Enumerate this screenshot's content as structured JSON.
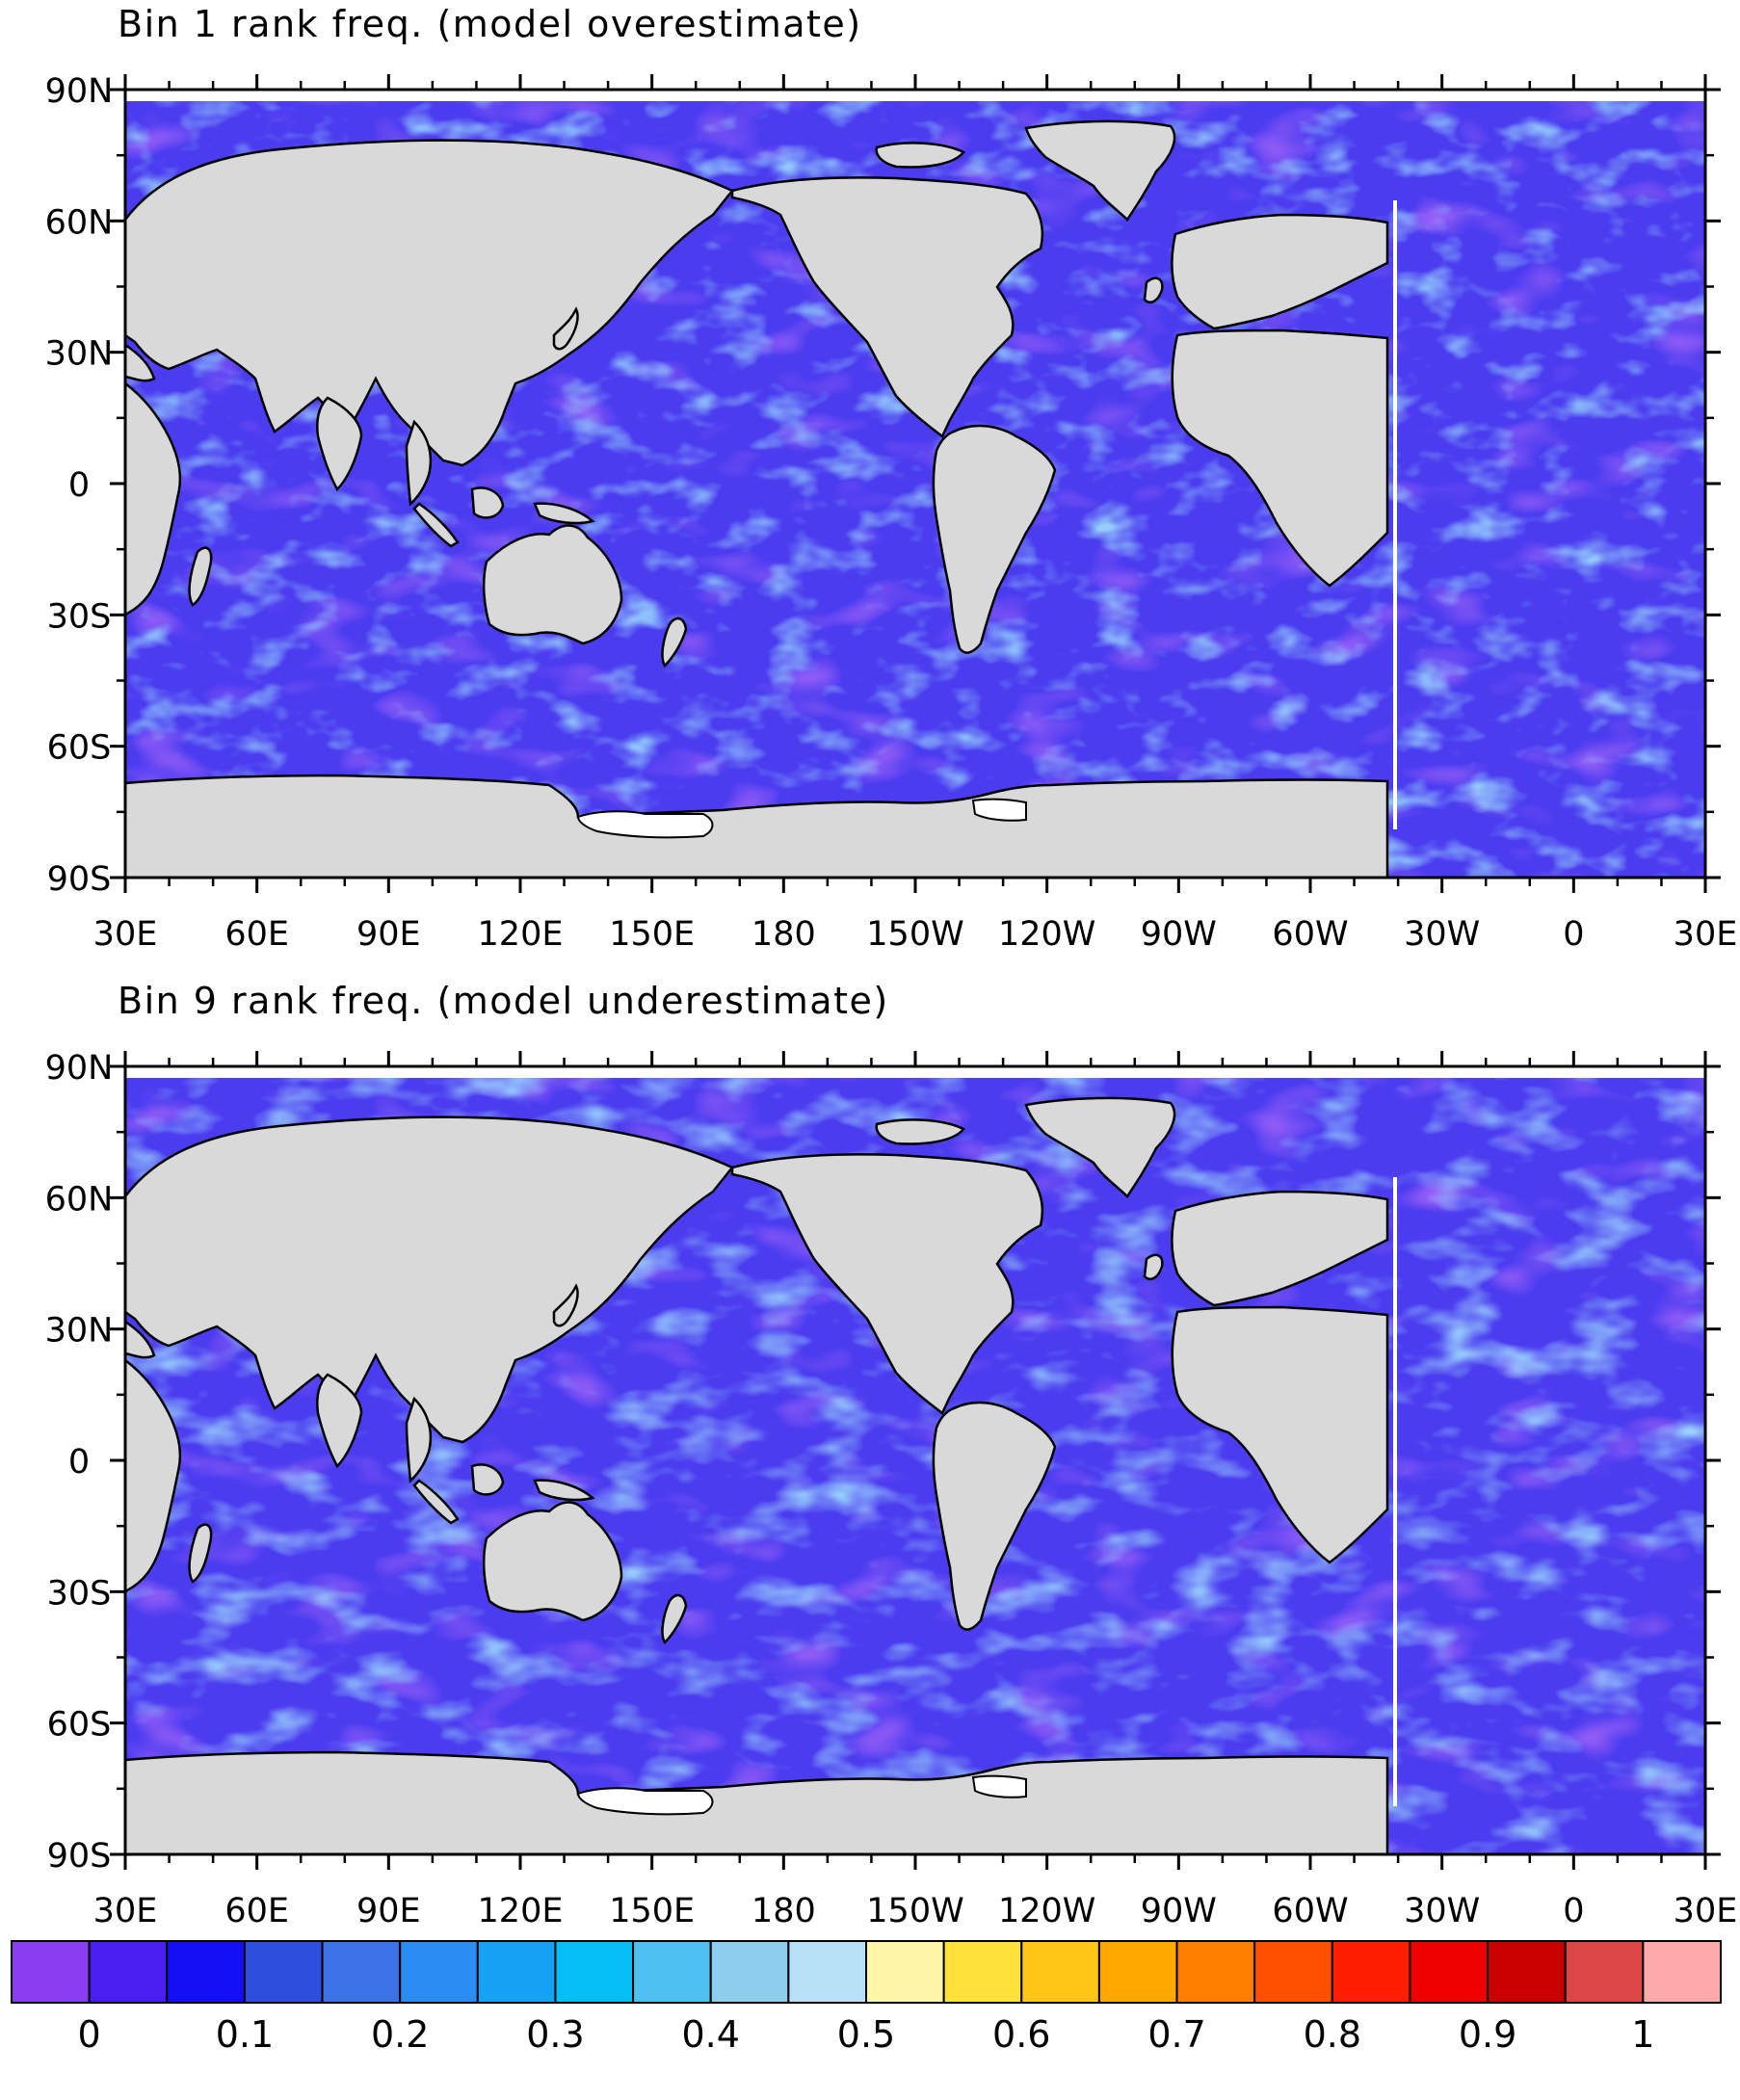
{
  "panels": [
    {
      "id": "bin1",
      "title": "Bin 1 rank freq. (model overestimate)"
    },
    {
      "id": "bin9",
      "title": "Bin 9 rank freq. (model underestimate)"
    }
  ],
  "lat_ticks": [
    "90N",
    "60N",
    "30N",
    "0",
    "30S",
    "60S",
    "90S"
  ],
  "lon_ticks": [
    "30E",
    "60E",
    "90E",
    "120E",
    "150E",
    "180",
    "150W",
    "120W",
    "90W",
    "60W",
    "30W",
    "0",
    "30E"
  ],
  "colorbar": {
    "colors": [
      "#8a3cf0",
      "#4a1ef0",
      "#1410f6",
      "#2e4fdc",
      "#3c72e6",
      "#2b8cf4",
      "#16a2f5",
      "#05bff6",
      "#4dc2f0",
      "#8fcdef",
      "#b8e0f6",
      "#fff7a8",
      "#ffe13c",
      "#ffc517",
      "#ffa800",
      "#ff8000",
      "#ff5000",
      "#ff1e00",
      "#ee0000",
      "#c80000",
      "#dc4646",
      "#ffaaaa"
    ],
    "tick_labels": [
      "0",
      "0.1",
      "0.2",
      "0.3",
      "0.4",
      "0.5",
      "0.6",
      "0.7",
      "0.8",
      "0.9",
      "1"
    ]
  },
  "style": {
    "land": "#d9d9d9",
    "ocean_base": "#4b3cf0",
    "coast": "#000000"
  }
}
